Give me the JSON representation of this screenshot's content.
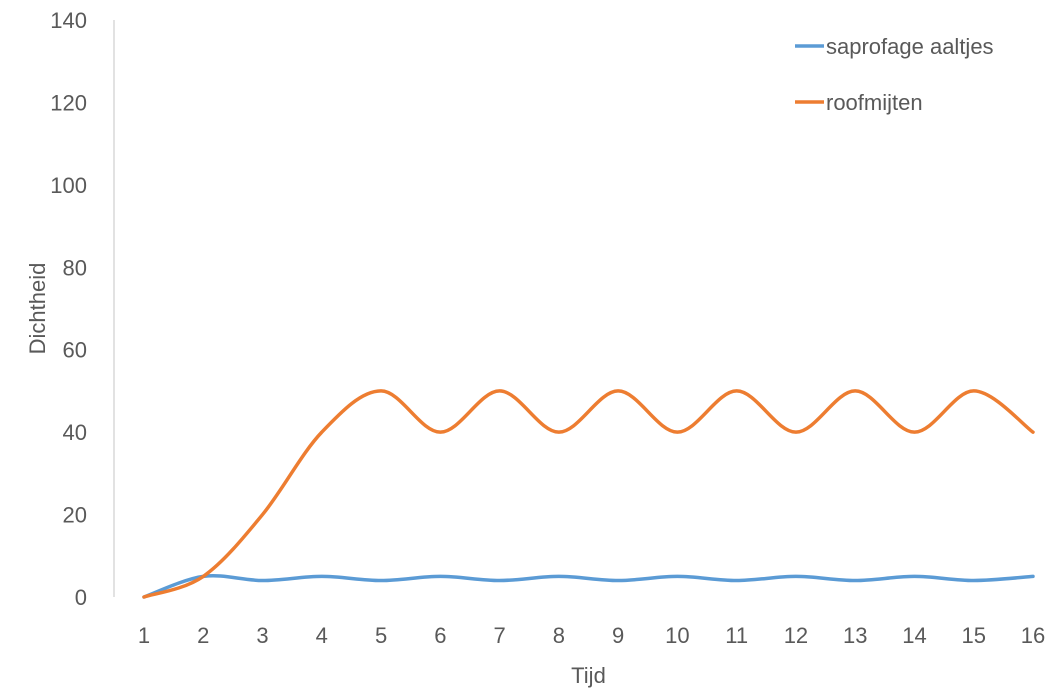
{
  "chart_data": {
    "type": "line",
    "title": "",
    "xlabel": "Tijd",
    "ylabel": "Dichtheid",
    "categories": [
      "1",
      "2",
      "3",
      "4",
      "5",
      "6",
      "7",
      "8",
      "9",
      "10",
      "11",
      "12",
      "13",
      "14",
      "15",
      "16"
    ],
    "ylim": [
      0,
      140
    ],
    "yticks": [
      0,
      20,
      40,
      60,
      80,
      100,
      120,
      140
    ],
    "grid": false,
    "legend_position": "top-right",
    "series": [
      {
        "name": "saprofage aaltjes",
        "color": "#5B9BD5",
        "values": [
          0,
          5,
          4,
          5,
          4,
          5,
          4,
          5,
          4,
          5,
          4,
          5,
          4,
          5,
          4,
          5
        ]
      },
      {
        "name": "roofmijten",
        "color": "#ED7D31",
        "values": [
          0,
          5,
          20,
          40,
          50,
          40,
          50,
          40,
          50,
          40,
          50,
          40,
          50,
          40,
          50,
          40
        ]
      }
    ]
  }
}
